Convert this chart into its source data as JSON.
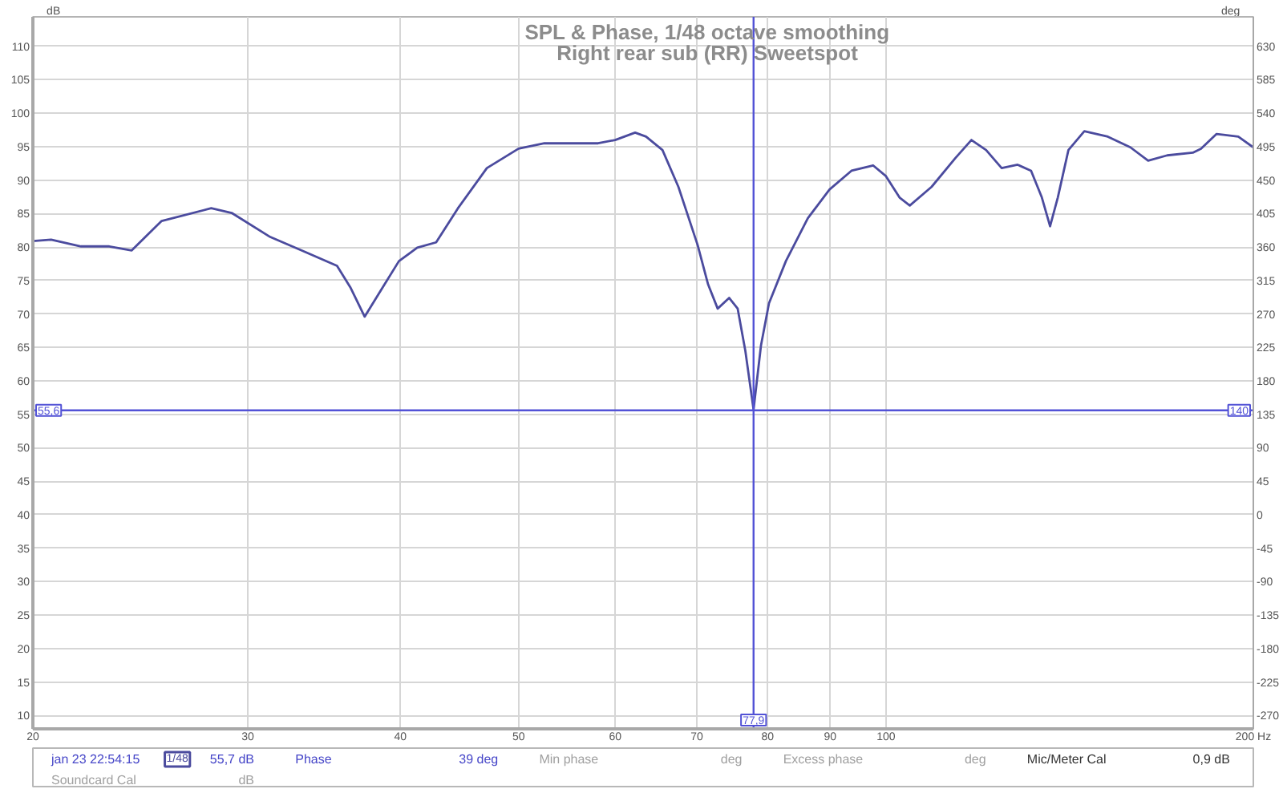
{
  "chart_data": {
    "type": "line",
    "title": "SPL & Phase, 1/48 octave smoothing",
    "subtitle": "Right rear sub (RR) Sweetspot",
    "ylabel": "dB",
    "y2label": "deg",
    "log": "x",
    "xlim": [
      20,
      200
    ],
    "xticks": [
      20,
      30,
      40,
      50,
      60,
      70,
      80,
      90,
      100,
      {
        "value": 200,
        "label": "200 Hz"
      }
    ],
    "ylim": [
      8,
      114.4
    ],
    "yticks": [
      10,
      15,
      20,
      25,
      30,
      35,
      40,
      45,
      50,
      55,
      60,
      65,
      70,
      75,
      80,
      85,
      90,
      95,
      100,
      105,
      110
    ],
    "y2lim": [
      -288,
      669.6
    ],
    "y2ticks": [
      -270,
      -225,
      -180,
      -135,
      -90,
      -45,
      0,
      45,
      90,
      135,
      180,
      225,
      270,
      315,
      360,
      405,
      450,
      495,
      540,
      585,
      630
    ],
    "grid": true,
    "legend": "bottom",
    "x": [
      20,
      20.7,
      21.9,
      23.1,
      24.1,
      25.5,
      28.0,
      29.1,
      31.3,
      33.2,
      35.5,
      36.4,
      37.4,
      38.7,
      39.9,
      41.3,
      42.8,
      44.6,
      47.1,
      50,
      52.5,
      55.2,
      58.1,
      60,
      62.3,
      63.6,
      65.6,
      67.6,
      70.1,
      71.5,
      72.8,
      74.4,
      75.6,
      76.7,
      77.9,
      79.0,
      80.2,
      82.8,
      86.3,
      89.9,
      93.7,
      97.6,
      100,
      102.6,
      104.6,
      109.0,
      114.0,
      117.5,
      120.8,
      124.4,
      128.2,
      131.5,
      134.2,
      136.3,
      138.3,
      141.1,
      145.4,
      152.0,
      158.6,
      164,
      170,
      178.4,
      181.2,
      186.6,
      194.4,
      200
    ],
    "series": [
      {
        "name": "jan 23 22:54:15",
        "color": "#4b4b9e",
        "values": [
          80.9,
          81.1,
          80.1,
          80.1,
          79.5,
          83.9,
          85.8,
          85.1,
          81.5,
          79.5,
          77.2,
          74.0,
          69.6,
          74.0,
          77.9,
          79.9,
          80.7,
          85.8,
          91.8,
          94.7,
          95.5,
          95.5,
          95.5,
          96.0,
          97.1,
          96.5,
          94.5,
          89.0,
          80.3,
          74.4,
          70.8,
          72.4,
          70.8,
          64.5,
          55.7,
          65.3,
          71.6,
          77.9,
          84.3,
          88.6,
          91.4,
          92.2,
          90.6,
          87.4,
          86.2,
          89.0,
          93.3,
          96.0,
          94.5,
          91.8,
          92.3,
          91.4,
          87.4,
          83.1,
          87.4,
          94.5,
          97.3,
          96.5,
          94.9,
          92.9,
          93.7,
          94.1,
          94.7,
          96.9,
          96.5,
          94.9
        ]
      }
    ],
    "ref_lines": [
      {
        "axis": "x",
        "value": 77.9,
        "label": "77,9",
        "color": "#5252d6"
      },
      {
        "axis": "y",
        "value": 55.6,
        "label": "55,6",
        "color": "#5252d6"
      }
    ],
    "annotations": [
      {
        "text": "140",
        "x": 200,
        "y": 55.6
      },
      "1/48",
      "55,7 dB",
      "Phase",
      "39 deg",
      "Min phase",
      "deg",
      "Excess phase",
      "deg",
      "Mic/Meter Cal",
      "0,9 dB",
      "Soundcard Cal",
      "dB"
    ]
  }
}
